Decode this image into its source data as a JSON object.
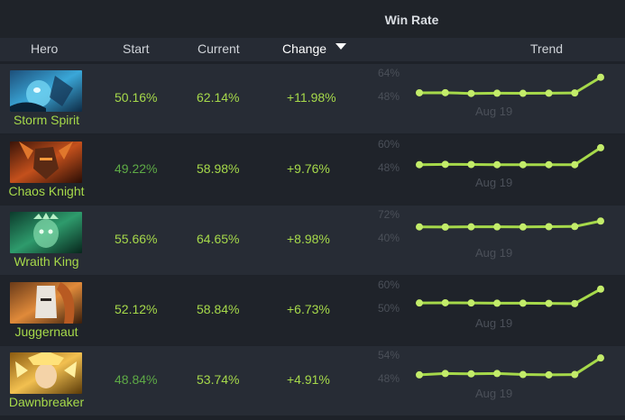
{
  "header": {
    "group_title": "Win Rate",
    "columns": {
      "hero": "Hero",
      "start": "Start",
      "current": "Current",
      "change": "Change",
      "trend": "Trend"
    }
  },
  "colors": {
    "accent_green": "#a6d94a",
    "dim_green": "#5eaa46",
    "row_dark": "#1f232a",
    "row_light": "#272c35"
  },
  "rows": [
    {
      "hero": "Storm Spirit",
      "portrait_icon": "storm-spirit-portrait",
      "start": "50.16%",
      "current": "62.14%",
      "change": "+11.98%",
      "trend": {
        "ymax_label": "64%",
        "ymin_label": "48%",
        "x_label": "Aug 19",
        "ymin": 48,
        "ymax": 64,
        "points": [
          50.1,
          50.2,
          49.6,
          49.8,
          49.7,
          49.8,
          50.0,
          62.1
        ]
      }
    },
    {
      "hero": "Chaos Knight",
      "portrait_icon": "chaos-knight-portrait",
      "start": "49.22%",
      "current": "58.98%",
      "change": "+9.76%",
      "trend": {
        "ymax_label": "60%",
        "ymin_label": "48%",
        "x_label": "Aug 19",
        "ymin": 48,
        "ymax": 60,
        "points": [
          49.2,
          49.4,
          49.3,
          49.2,
          49.2,
          49.2,
          49.2,
          59.0
        ]
      }
    },
    {
      "hero": "Wraith King",
      "portrait_icon": "wraith-king-portrait",
      "start": "55.66%",
      "current": "64.65%",
      "change": "+8.98%",
      "trend": {
        "ymax_label": "72%",
        "ymin_label": "40%",
        "x_label": "Aug 19",
        "ymin": 40,
        "ymax": 72,
        "points": [
          55.7,
          55.5,
          55.8,
          55.8,
          55.6,
          56.0,
          56.3,
          64.7
        ]
      }
    },
    {
      "hero": "Juggernaut",
      "portrait_icon": "juggernaut-portrait",
      "start": "52.12%",
      "current": "58.84%",
      "change": "+6.73%",
      "trend": {
        "ymax_label": "60%",
        "ymin_label": "50%",
        "x_label": "Aug 19",
        "ymin": 50,
        "ymax": 60,
        "points": [
          52.1,
          52.2,
          52.1,
          52.0,
          52.0,
          51.9,
          51.8,
          58.8
        ]
      }
    },
    {
      "hero": "Dawnbreaker",
      "portrait_icon": "dawnbreaker-portrait",
      "start": "48.84%",
      "current": "53.74%",
      "change": "+4.91%",
      "trend": {
        "ymax_label": "54%",
        "ymin_label": "48%",
        "x_label": "Aug 19",
        "ymin": 48,
        "ymax": 54,
        "points": [
          48.8,
          49.2,
          49.1,
          49.2,
          48.9,
          48.8,
          48.9,
          53.7
        ]
      }
    }
  ]
}
